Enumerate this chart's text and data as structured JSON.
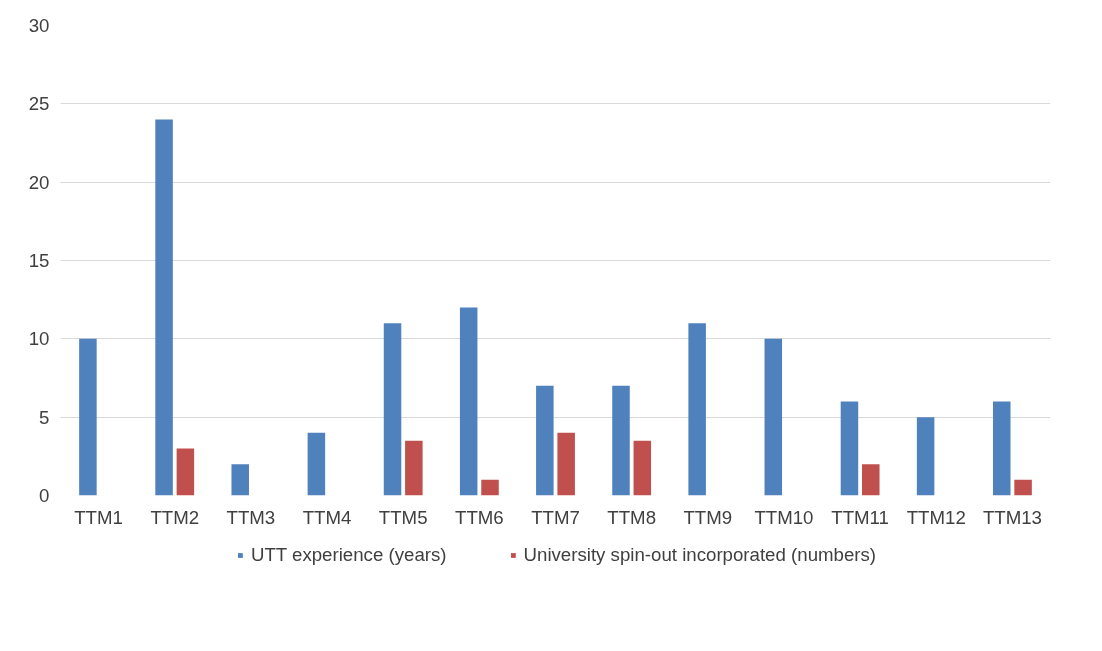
{
  "chart_data": {
    "type": "bar",
    "categories": [
      "TTM1",
      "TTM2",
      "TTM3",
      "TTM4",
      "TTM5",
      "TTM6",
      "TTM7",
      "TTM8",
      "TTM9",
      "TTM10",
      "TTM11",
      "TTM12",
      "TTM13"
    ],
    "series": [
      {
        "name": "UTT experience (years)",
        "color": "#4f81bd",
        "values": [
          10,
          24,
          2,
          4,
          11,
          12,
          7,
          7,
          11,
          10,
          6,
          5,
          6
        ]
      },
      {
        "name": "University spin-out incorporated (numbers)",
        "color": "#c0504d",
        "values": [
          null,
          3,
          null,
          null,
          3.5,
          1,
          4,
          3.5,
          null,
          null,
          2,
          null,
          1
        ]
      }
    ],
    "ylim": [
      0,
      30
    ],
    "yticks": [
      0,
      5,
      10,
      15,
      20,
      25,
      30
    ],
    "grid": "y",
    "legend": "bottom"
  }
}
